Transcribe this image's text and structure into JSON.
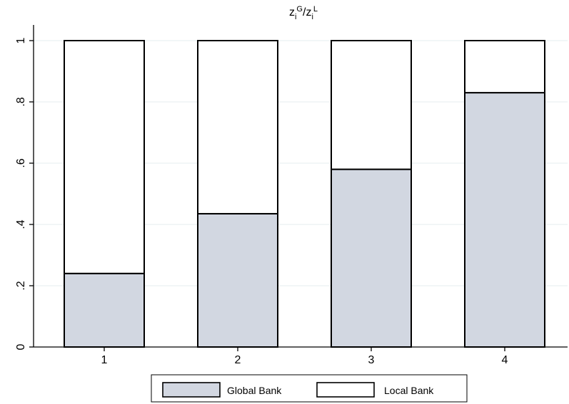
{
  "chart_data": {
    "type": "bar",
    "stacked": true,
    "title": {
      "base1": "z",
      "sub1": "i",
      "sup1": "G",
      "sep": "/",
      "base2": "z",
      "sub2": "i",
      "sup2": "L"
    },
    "categories": [
      "1",
      "2",
      "3",
      "4"
    ],
    "series": [
      {
        "name": "Global Bank",
        "values": [
          0.24,
          0.435,
          0.58,
          0.83
        ],
        "color": "#d2d7e1"
      },
      {
        "name": "Local Bank",
        "values": [
          0.76,
          0.565,
          0.42,
          0.17
        ],
        "color": "#ffffff"
      }
    ],
    "ylim": [
      0,
      1
    ],
    "yticks": [
      0,
      0.2,
      0.4,
      0.6,
      0.8,
      1
    ],
    "ytick_labels": [
      "0",
      ".2",
      ".4",
      ".6",
      ".8",
      "1"
    ],
    "grid": true,
    "legend_position": "bottom",
    "xlabel": "",
    "ylabel": ""
  }
}
